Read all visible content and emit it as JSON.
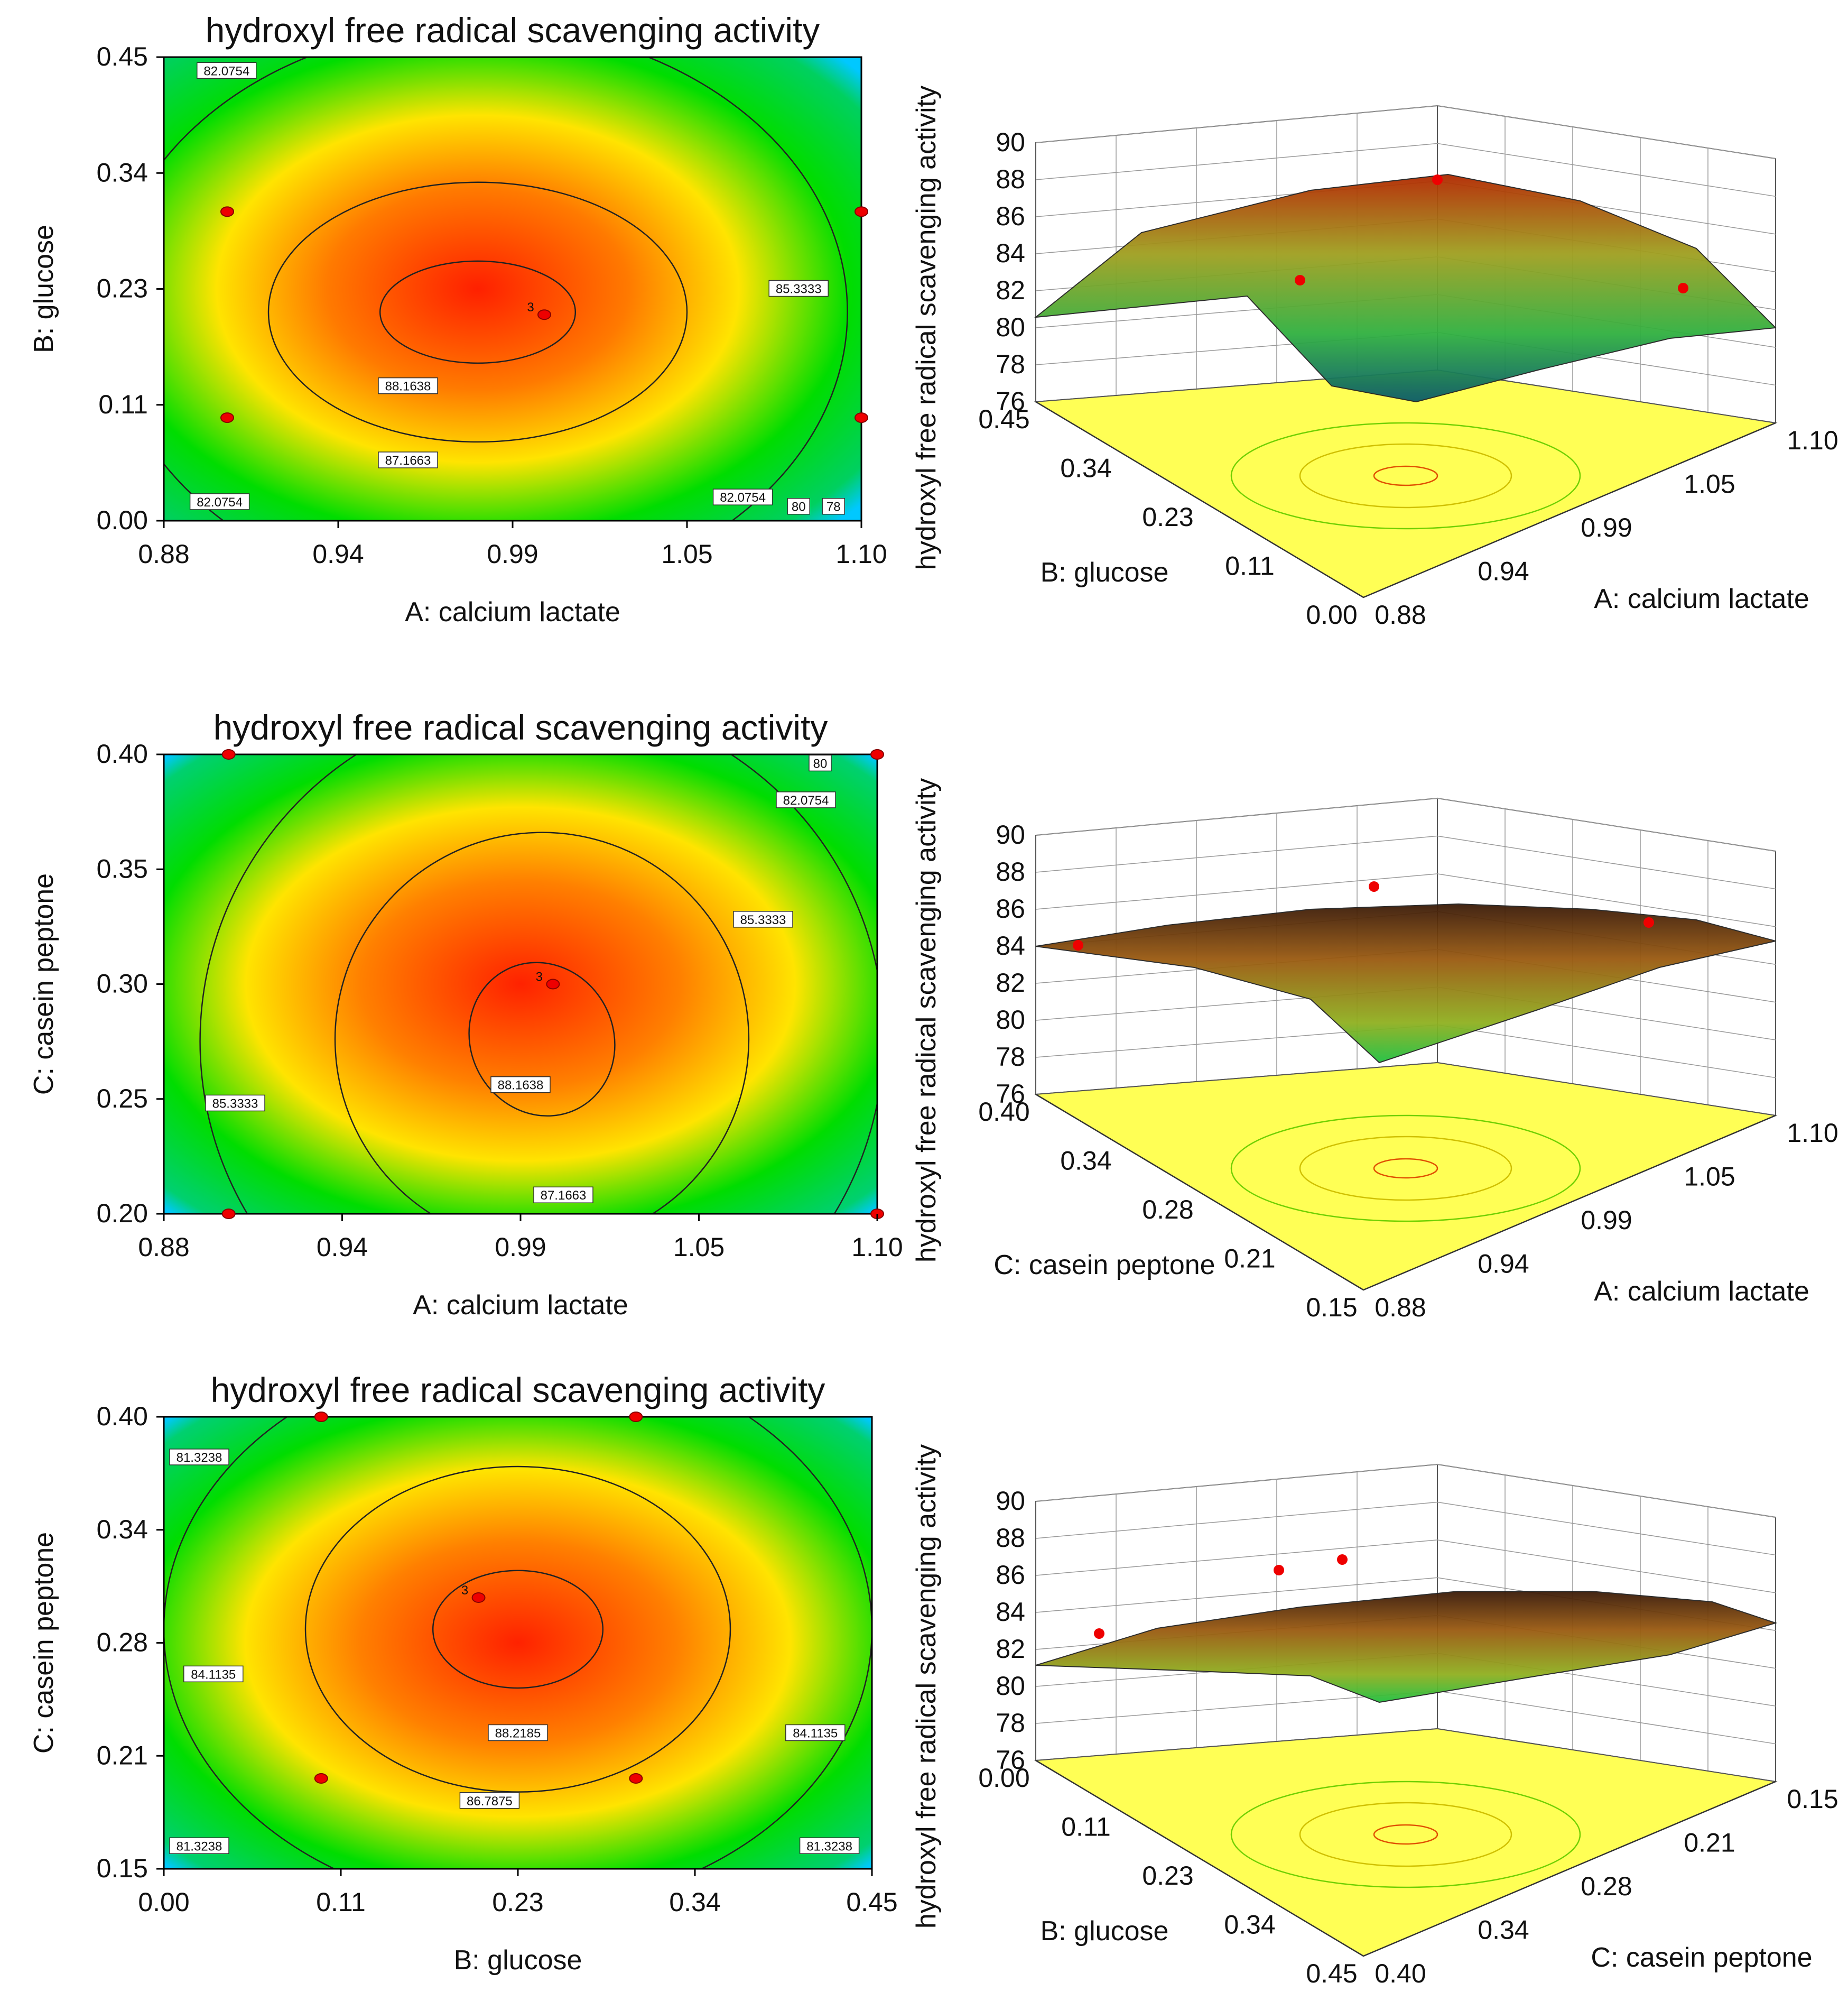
{
  "figure": "Response surface plots",
  "colors": {
    "high": "#ff2a00",
    "mid": "#ffe000",
    "low": "#00dd00",
    "min": "#0022ff",
    "floor": "#ffff55",
    "point": "#ee0000"
  },
  "chart_data": [
    {
      "type": "contour",
      "title": "hydroxyl free radical scavenging activity",
      "xlabel": "A: calcium lactate",
      "ylabel": "B: glucose",
      "xticks": [
        "0.88",
        "0.94",
        "0.99",
        "1.05",
        "1.10"
      ],
      "yticks": [
        "0.00",
        "0.11",
        "0.23",
        "0.34",
        "0.45"
      ],
      "xlim": [
        0.88,
        1.1
      ],
      "ylim": [
        0.0,
        0.45
      ],
      "contour_labels": [
        "82.0754",
        "85.3333",
        "88.1638",
        "87.1663",
        "82.0754",
        "82.0754",
        "80",
        "78"
      ],
      "max_label": "3",
      "design_points": [
        [
          0.9,
          0.3
        ],
        [
          1.1,
          0.3
        ],
        [
          0.9,
          0.1
        ],
        [
          1.1,
          0.1
        ],
        [
          1.0,
          0.2
        ]
      ]
    },
    {
      "type": "surface3d",
      "zlabel": "hydroxyl free radical scavenging activity",
      "zticks": [
        "90",
        "88",
        "86",
        "84",
        "82",
        "80",
        "78",
        "76"
      ],
      "xlabel": "A: calcium lactate",
      "ylabel": "B: glucose",
      "xticks": [
        "0.88",
        "0.94",
        "0.99",
        "1.05",
        "1.10"
      ],
      "yticks": [
        "0.45",
        "0.34",
        "0.23",
        "0.11",
        "0.00"
      ]
    },
    {
      "type": "contour",
      "title": "hydroxyl free radical scavenging activity",
      "xlabel": "A: calcium lactate",
      "ylabel": "C: casein peptone",
      "xticks": [
        "0.88",
        "0.94",
        "0.99",
        "1.05",
        "1.10"
      ],
      "yticks": [
        "0.20",
        "0.25",
        "0.30",
        "0.35",
        "0.40"
      ],
      "xlim": [
        0.88,
        1.1
      ],
      "ylim": [
        0.2,
        0.4
      ],
      "contour_labels": [
        "80",
        "82.0754",
        "85.3333",
        "85.3333",
        "88.1638",
        "87.1663"
      ],
      "max_label": "3",
      "design_points": [
        [
          0.9,
          0.4
        ],
        [
          1.1,
          0.4
        ],
        [
          0.9,
          0.2
        ],
        [
          1.1,
          0.2
        ],
        [
          1.0,
          0.3
        ]
      ]
    },
    {
      "type": "surface3d",
      "zlabel": "hydroxyl free radical scavenging activity",
      "zticks": [
        "90",
        "88",
        "86",
        "84",
        "82",
        "80",
        "78",
        "76"
      ],
      "xlabel": "A: calcium lactate",
      "ylabel": "C: casein peptone",
      "xticks": [
        "0.88",
        "0.94",
        "0.99",
        "1.05",
        "1.10"
      ],
      "yticks": [
        "0.40",
        "0.34",
        "0.28",
        "0.21",
        "0.15"
      ]
    },
    {
      "type": "contour",
      "title": "hydroxyl free radical scavenging activity",
      "xlabel": "B: glucose",
      "ylabel": "C: casein peptone",
      "xticks": [
        "0.00",
        "0.11",
        "0.23",
        "0.34",
        "0.45"
      ],
      "yticks": [
        "0.15",
        "0.21",
        "0.28",
        "0.34",
        "0.40"
      ],
      "xlim": [
        0.0,
        0.45
      ],
      "ylim": [
        0.15,
        0.4
      ],
      "contour_labels": [
        "81.3238",
        "84.1135",
        "88.2185",
        "86.7875",
        "84.1135",
        "81.3238",
        "81.3238"
      ],
      "max_label": "3",
      "design_points": [
        [
          0.1,
          0.4
        ],
        [
          0.3,
          0.4
        ],
        [
          0.1,
          0.2
        ],
        [
          0.3,
          0.2
        ],
        [
          0.2,
          0.3
        ]
      ]
    },
    {
      "type": "surface3d",
      "zlabel": "hydroxyl free radical scavenging activity",
      "zticks": [
        "90",
        "88",
        "86",
        "84",
        "82",
        "80",
        "78",
        "76"
      ],
      "xlabel": "C: casein peptone",
      "ylabel": "B: glucose",
      "xticks": [
        "0.40",
        "0.34",
        "0.28",
        "0.21",
        "0.15"
      ],
      "yticks": [
        "0.00",
        "0.11",
        "0.23",
        "0.34",
        "0.45"
      ]
    }
  ]
}
